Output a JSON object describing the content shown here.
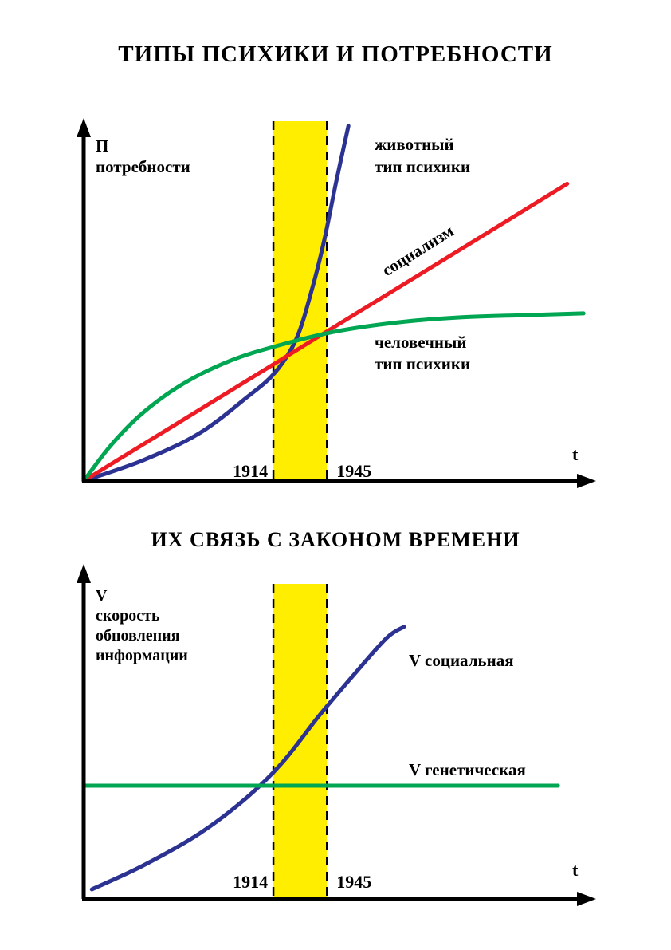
{
  "page": {
    "background": "#ffffff",
    "text_color": "#000000"
  },
  "chart_data": [
    {
      "type": "line",
      "title": "ТИПЫ ПСИХИКИ И ПОТРЕБНОСТИ",
      "xlabel": "t",
      "ylabel_lines": [
        "П",
        "потребности"
      ],
      "x_ticks": [
        "1914",
        "1945"
      ],
      "xlim": [
        0,
        1
      ],
      "ylim": [
        0,
        1
      ],
      "grid": false,
      "highlight_band": {
        "between_ticks": [
          "1914",
          "1945"
        ],
        "x0": 0.372,
        "x1": 0.477,
        "color": "#ffee00"
      },
      "series": [
        {
          "name": "животный тип психики",
          "label_lines": [
            "животный",
            "тип психики"
          ],
          "color": "#2b3291",
          "shape": "accelerating exponential growth",
          "x": [
            0,
            0.117,
            0.227,
            0.32,
            0.375,
            0.417,
            0.448,
            0.472,
            0.495,
            0.519
          ],
          "y": [
            0,
            0.058,
            0.133,
            0.233,
            0.302,
            0.396,
            0.536,
            0.673,
            0.833,
            0.989
          ]
        },
        {
          "name": "социализм",
          "label_lines": [
            "социализм"
          ],
          "color": "#ed1c24",
          "shape": "straight line",
          "x": [
            0,
            0.948
          ],
          "y": [
            0,
            0.828
          ]
        },
        {
          "name": "человечный тип психики",
          "label_lines": [
            "человечный",
            "тип психики"
          ],
          "color": "#00a651",
          "shape": "saturating growth",
          "x": [
            0,
            0.055,
            0.117,
            0.195,
            0.289,
            0.383,
            0.492,
            0.617,
            0.742,
            0.867,
            0.98
          ],
          "y": [
            0,
            0.102,
            0.191,
            0.271,
            0.336,
            0.378,
            0.416,
            0.442,
            0.456,
            0.462,
            0.467
          ]
        }
      ]
    },
    {
      "type": "line",
      "title": "ИХ СВЯЗЬ С ЗАКОНОМ ВРЕМЕНИ",
      "xlabel": "t",
      "ylabel_lines": [
        "V",
        "скорость",
        "обновления",
        "информации"
      ],
      "x_ticks": [
        "1914",
        "1945"
      ],
      "xlim": [
        0,
        1
      ],
      "ylim": [
        0,
        1
      ],
      "grid": false,
      "highlight_band": {
        "between_ticks": [
          "1914",
          "1945"
        ],
        "x0": 0.372,
        "x1": 0.477,
        "color": "#ffee00"
      },
      "series": [
        {
          "name": "V социальная",
          "label_lines": [
            "V социальная"
          ],
          "color": "#2b3291",
          "label_color": "#000000",
          "shape": "accelerating exponential growth",
          "x": [
            0.016,
            0.117,
            0.227,
            0.32,
            0.391,
            0.461,
            0.531,
            0.594,
            0.628
          ],
          "y": [
            0.03,
            0.105,
            0.205,
            0.318,
            0.43,
            0.573,
            0.705,
            0.818,
            0.853
          ]
        },
        {
          "name": "V генетическая",
          "label_lines": [
            "V генетическая"
          ],
          "color": "#00a651",
          "shape": "constant horizontal line",
          "x": [
            0,
            0.93
          ],
          "y": [
            0.355,
            0.355
          ]
        }
      ]
    }
  ]
}
